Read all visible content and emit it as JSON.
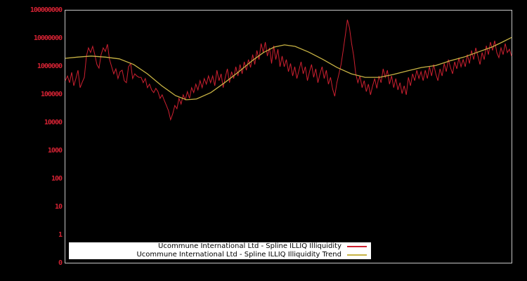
{
  "figure": {
    "background_color": "#000000",
    "plot_border_color": "#c6c6c6",
    "tick_label_color": "#d22233"
  },
  "y_axis": {
    "tick_labels": [
      "100000000",
      "10000000",
      "1000000",
      "100000",
      "10000",
      "1000",
      "100",
      "10",
      "1",
      "0"
    ],
    "tick_values": [
      100000000,
      10000000,
      1000000,
      100000,
      10000,
      1000,
      100,
      10,
      1,
      0
    ]
  },
  "legend": {
    "entries": [
      {
        "label": "Ucommune International Ltd - Spline ILLIQ Illiquidity",
        "color": "#cd2030"
      },
      {
        "label": "Ucommune International Ltd - Spline ILLIQ Illiquidity Trend",
        "color": "#c8b344"
      }
    ]
  },
  "chart_data": {
    "type": "line",
    "title": "",
    "xlabel": "",
    "ylabel": "",
    "x_axis_labels": "none",
    "y_scale": "log",
    "y_ticks": [
      100000000,
      10000000,
      1000000,
      100000,
      10000,
      1000,
      100,
      10,
      1,
      0
    ],
    "legend_position": "bottom-center",
    "grid": false,
    "series": [
      {
        "name": "Ucommune International Ltd - Spline ILLIQ Illiquidity",
        "color": "#cd2030",
        "style": "jagged-daily",
        "values": [
          320000,
          470000,
          270000,
          630000,
          210000,
          380000,
          750000,
          180000,
          280000,
          420000,
          2400000,
          4700000,
          3200000,
          5300000,
          2700000,
          1200000,
          890000,
          2700000,
          4700000,
          3500000,
          6300000,
          1800000,
          1000000,
          560000,
          840000,
          380000,
          670000,
          750000,
          320000,
          270000,
          1000000,
          1300000,
          380000,
          560000,
          470000,
          420000,
          420000,
          270000,
          380000,
          180000,
          240000,
          150000,
          120000,
          170000,
          130000,
          75000,
          100000,
          63000,
          42000,
          27000,
          13000,
          21000,
          42000,
          32000,
          75000,
          47000,
          100000,
          67000,
          130000,
          75000,
          180000,
          120000,
          240000,
          150000,
          320000,
          180000,
          380000,
          240000,
          470000,
          270000,
          470000,
          210000,
          750000,
          320000,
          560000,
          180000,
          420000,
          840000,
          270000,
          670000,
          380000,
          1000000,
          470000,
          1200000,
          560000,
          1500000,
          750000,
          1800000,
          940000,
          2700000,
          1200000,
          3800000,
          1800000,
          6700000,
          3200000,
          7500000,
          2400000,
          4700000,
          1300000,
          5600000,
          1800000,
          4200000,
          1000000,
          2400000,
          1000000,
          1800000,
          670000,
          1300000,
          470000,
          1000000,
          380000,
          750000,
          1500000,
          560000,
          1000000,
          320000,
          670000,
          1200000,
          420000,
          840000,
          270000,
          560000,
          1000000,
          380000,
          750000,
          240000,
          420000,
          160000,
          89000,
          270000,
          560000,
          1200000,
          3800000,
          13000000,
          47000000,
          24000000,
          6700000,
          2400000,
          560000,
          270000,
          470000,
          180000,
          320000,
          130000,
          240000,
          100000,
          210000,
          380000,
          170000,
          470000,
          270000,
          840000,
          420000,
          750000,
          240000,
          470000,
          180000,
          380000,
          150000,
          270000,
          110000,
          210000,
          100000,
          420000,
          210000,
          560000,
          320000,
          750000,
          380000,
          670000,
          320000,
          750000,
          380000,
          1000000,
          470000,
          1200000,
          560000,
          320000,
          840000,
          470000,
          1300000,
          670000,
          1800000,
          940000,
          560000,
          1500000,
          840000,
          2100000,
          1000000,
          1800000,
          1000000,
          2700000,
          1300000,
          3800000,
          1800000,
          4700000,
          2400000,
          1200000,
          3200000,
          1800000,
          5600000,
          2700000,
          7500000,
          3800000,
          8400000,
          3200000,
          2100000,
          4700000,
          2700000,
          6700000,
          3200000,
          4200000,
          2400000
        ]
      },
      {
        "name": "Ucommune International Ltd - Spline ILLIQ Illiquidity Trend",
        "color": "#c8b344",
        "style": "smooth-spline",
        "x_fraction": [
          0,
          0.027,
          0.058,
          0.09,
          0.121,
          0.153,
          0.184,
          0.216,
          0.247,
          0.271,
          0.294,
          0.326,
          0.357,
          0.389,
          0.42,
          0.444,
          0.468,
          0.491,
          0.515,
          0.546,
          0.578,
          0.609,
          0.641,
          0.672,
          0.704,
          0.735,
          0.767,
          0.798,
          0.83,
          0.861,
          0.893,
          0.924,
          0.956,
          0.979,
          1.0
        ],
        "values": [
          2000000,
          2200000,
          2400000,
          2200000,
          1900000,
          1200000,
          560000,
          210000,
          94000,
          67000,
          71000,
          120000,
          270000,
          670000,
          1700000,
          3200000,
          5000000,
          6000000,
          5300000,
          3300000,
          1800000,
          940000,
          560000,
          420000,
          420000,
          530000,
          710000,
          940000,
          1100000,
          1600000,
          2200000,
          3300000,
          5000000,
          7500000,
          11000000
        ]
      }
    ]
  }
}
